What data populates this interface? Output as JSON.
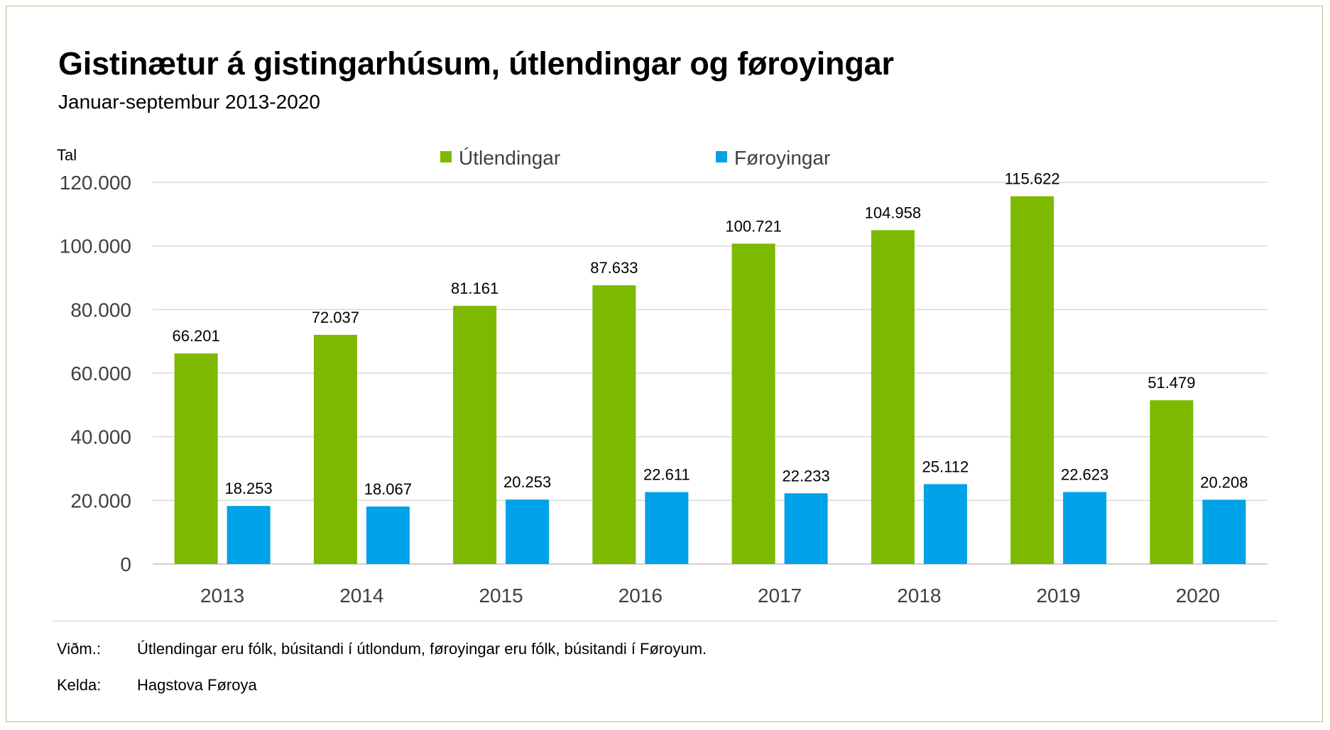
{
  "header": {
    "title": "Gistinætur á gistingarhúsum, útlendingar og føroyingar",
    "subtitle": "Januar-septembur 2013-2020"
  },
  "chart_data": {
    "type": "bar",
    "title": "Gistinætur á gistingarhúsum, útlendingar og føroyingar",
    "subtitle": "Januar-septembur 2013-2020",
    "ylabel": "Tal",
    "xlabel": "",
    "ylim": [
      0,
      120000
    ],
    "yticks": [
      0,
      20000,
      40000,
      60000,
      80000,
      100000,
      120000
    ],
    "ytick_labels": [
      "0",
      "20.000",
      "40.000",
      "60.000",
      "80.000",
      "100.000",
      "120.000"
    ],
    "grid": true,
    "legend": "top-center",
    "categories": [
      "2013",
      "2014",
      "2015",
      "2016",
      "2017",
      "2018",
      "2019",
      "2020"
    ],
    "series": [
      {
        "name": "Útlendingar",
        "color": "#7cb900",
        "values": [
          66201,
          72037,
          81161,
          87633,
          100721,
          104958,
          115622,
          51479
        ],
        "labels": [
          "66.201",
          "72.037",
          "81.161",
          "87.633",
          "100.721",
          "104.958",
          "115.622",
          "51.479"
        ]
      },
      {
        "name": "Føroyingar",
        "color": "#00a2e8",
        "values": [
          18253,
          18067,
          20253,
          22611,
          22233,
          25112,
          22623,
          20208
        ],
        "labels": [
          "18.253",
          "18.067",
          "20.253",
          "22.611",
          "22.233",
          "25.112",
          "22.623",
          "20.208"
        ]
      }
    ]
  },
  "notes": {
    "remark_key": "Viðm.:",
    "remark_text": "Útlendingar eru fólk, búsitandi í útlondum, føroyingar eru fólk, búsitandi í Føroyum.",
    "source_key": "Kelda:",
    "source_text": "Hagstova Føroya"
  }
}
